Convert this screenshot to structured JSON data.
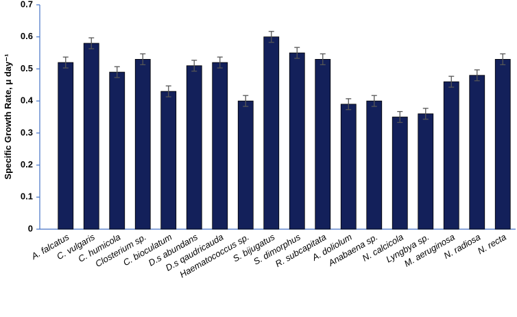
{
  "chart_data": {
    "type": "bar",
    "y_label": "Specific Growth Rate, μ day⁻¹",
    "categories": [
      "A. falcatus",
      "C. vulgaris",
      "C. humicola",
      "Closterium sp.",
      "C. bioculatum",
      "D.s abundans",
      "D.s qaudricauda",
      "Haematococcus sp.",
      "S. bijugatus",
      "S. dimorphus",
      "R. subcapitata",
      "A. doliolum",
      "Anabaena sp.",
      "N. calcicola",
      "Lyngbya sp.",
      "M. aeruginosa",
      "N. radiosa",
      "N. recta"
    ],
    "values": [
      0.52,
      0.58,
      0.49,
      0.53,
      0.43,
      0.51,
      0.52,
      0.4,
      0.6,
      0.55,
      0.53,
      0.39,
      0.4,
      0.35,
      0.36,
      0.46,
      0.48,
      0.53
    ],
    "errors": [
      0.017,
      0.017,
      0.017,
      0.017,
      0.017,
      0.017,
      0.017,
      0.017,
      0.017,
      0.017,
      0.017,
      0.017,
      0.017,
      0.017,
      0.017,
      0.017,
      0.017,
      0.017
    ],
    "color": "#13205a",
    "ylim": [
      0,
      0.7
    ],
    "yticks": [
      0,
      0.1,
      0.2,
      0.3,
      0.4,
      0.5,
      0.6,
      0.7
    ]
  }
}
